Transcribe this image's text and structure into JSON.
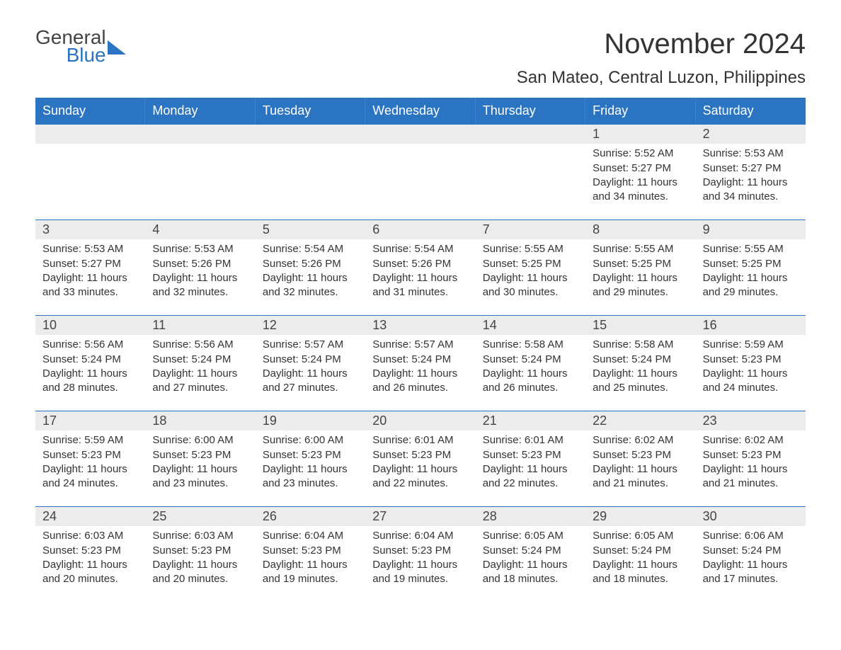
{
  "brand": {
    "word1": "General",
    "word2": "Blue",
    "icon_color": "#2a74c1"
  },
  "title": "November 2024",
  "subtitle": "San Mateo, Central Luzon, Philippines",
  "colors": {
    "header_bg": "#2a74c1",
    "daynum_bg": "#ececec",
    "text": "#333333",
    "page_bg": "#ffffff"
  },
  "fonts": {
    "title_size": 40,
    "subtitle_size": 24,
    "weekday_size": 18,
    "body_size": 15
  },
  "weekdays": [
    "Sunday",
    "Monday",
    "Tuesday",
    "Wednesday",
    "Thursday",
    "Friday",
    "Saturday"
  ],
  "weeks": [
    [
      {
        "n": "",
        "sr": "",
        "ss": "",
        "dl": ""
      },
      {
        "n": "",
        "sr": "",
        "ss": "",
        "dl": ""
      },
      {
        "n": "",
        "sr": "",
        "ss": "",
        "dl": ""
      },
      {
        "n": "",
        "sr": "",
        "ss": "",
        "dl": ""
      },
      {
        "n": "",
        "sr": "",
        "ss": "",
        "dl": ""
      },
      {
        "n": "1",
        "sr": "Sunrise: 5:52 AM",
        "ss": "Sunset: 5:27 PM",
        "dl": "Daylight: 11 hours and 34 minutes."
      },
      {
        "n": "2",
        "sr": "Sunrise: 5:53 AM",
        "ss": "Sunset: 5:27 PM",
        "dl": "Daylight: 11 hours and 34 minutes."
      }
    ],
    [
      {
        "n": "3",
        "sr": "Sunrise: 5:53 AM",
        "ss": "Sunset: 5:27 PM",
        "dl": "Daylight: 11 hours and 33 minutes."
      },
      {
        "n": "4",
        "sr": "Sunrise: 5:53 AM",
        "ss": "Sunset: 5:26 PM",
        "dl": "Daylight: 11 hours and 32 minutes."
      },
      {
        "n": "5",
        "sr": "Sunrise: 5:54 AM",
        "ss": "Sunset: 5:26 PM",
        "dl": "Daylight: 11 hours and 32 minutes."
      },
      {
        "n": "6",
        "sr": "Sunrise: 5:54 AM",
        "ss": "Sunset: 5:26 PM",
        "dl": "Daylight: 11 hours and 31 minutes."
      },
      {
        "n": "7",
        "sr": "Sunrise: 5:55 AM",
        "ss": "Sunset: 5:25 PM",
        "dl": "Daylight: 11 hours and 30 minutes."
      },
      {
        "n": "8",
        "sr": "Sunrise: 5:55 AM",
        "ss": "Sunset: 5:25 PM",
        "dl": "Daylight: 11 hours and 29 minutes."
      },
      {
        "n": "9",
        "sr": "Sunrise: 5:55 AM",
        "ss": "Sunset: 5:25 PM",
        "dl": "Daylight: 11 hours and 29 minutes."
      }
    ],
    [
      {
        "n": "10",
        "sr": "Sunrise: 5:56 AM",
        "ss": "Sunset: 5:24 PM",
        "dl": "Daylight: 11 hours and 28 minutes."
      },
      {
        "n": "11",
        "sr": "Sunrise: 5:56 AM",
        "ss": "Sunset: 5:24 PM",
        "dl": "Daylight: 11 hours and 27 minutes."
      },
      {
        "n": "12",
        "sr": "Sunrise: 5:57 AM",
        "ss": "Sunset: 5:24 PM",
        "dl": "Daylight: 11 hours and 27 minutes."
      },
      {
        "n": "13",
        "sr": "Sunrise: 5:57 AM",
        "ss": "Sunset: 5:24 PM",
        "dl": "Daylight: 11 hours and 26 minutes."
      },
      {
        "n": "14",
        "sr": "Sunrise: 5:58 AM",
        "ss": "Sunset: 5:24 PM",
        "dl": "Daylight: 11 hours and 26 minutes."
      },
      {
        "n": "15",
        "sr": "Sunrise: 5:58 AM",
        "ss": "Sunset: 5:24 PM",
        "dl": "Daylight: 11 hours and 25 minutes."
      },
      {
        "n": "16",
        "sr": "Sunrise: 5:59 AM",
        "ss": "Sunset: 5:23 PM",
        "dl": "Daylight: 11 hours and 24 minutes."
      }
    ],
    [
      {
        "n": "17",
        "sr": "Sunrise: 5:59 AM",
        "ss": "Sunset: 5:23 PM",
        "dl": "Daylight: 11 hours and 24 minutes."
      },
      {
        "n": "18",
        "sr": "Sunrise: 6:00 AM",
        "ss": "Sunset: 5:23 PM",
        "dl": "Daylight: 11 hours and 23 minutes."
      },
      {
        "n": "19",
        "sr": "Sunrise: 6:00 AM",
        "ss": "Sunset: 5:23 PM",
        "dl": "Daylight: 11 hours and 23 minutes."
      },
      {
        "n": "20",
        "sr": "Sunrise: 6:01 AM",
        "ss": "Sunset: 5:23 PM",
        "dl": "Daylight: 11 hours and 22 minutes."
      },
      {
        "n": "21",
        "sr": "Sunrise: 6:01 AM",
        "ss": "Sunset: 5:23 PM",
        "dl": "Daylight: 11 hours and 22 minutes."
      },
      {
        "n": "22",
        "sr": "Sunrise: 6:02 AM",
        "ss": "Sunset: 5:23 PM",
        "dl": "Daylight: 11 hours and 21 minutes."
      },
      {
        "n": "23",
        "sr": "Sunrise: 6:02 AM",
        "ss": "Sunset: 5:23 PM",
        "dl": "Daylight: 11 hours and 21 minutes."
      }
    ],
    [
      {
        "n": "24",
        "sr": "Sunrise: 6:03 AM",
        "ss": "Sunset: 5:23 PM",
        "dl": "Daylight: 11 hours and 20 minutes."
      },
      {
        "n": "25",
        "sr": "Sunrise: 6:03 AM",
        "ss": "Sunset: 5:23 PM",
        "dl": "Daylight: 11 hours and 20 minutes."
      },
      {
        "n": "26",
        "sr": "Sunrise: 6:04 AM",
        "ss": "Sunset: 5:23 PM",
        "dl": "Daylight: 11 hours and 19 minutes."
      },
      {
        "n": "27",
        "sr": "Sunrise: 6:04 AM",
        "ss": "Sunset: 5:23 PM",
        "dl": "Daylight: 11 hours and 19 minutes."
      },
      {
        "n": "28",
        "sr": "Sunrise: 6:05 AM",
        "ss": "Sunset: 5:24 PM",
        "dl": "Daylight: 11 hours and 18 minutes."
      },
      {
        "n": "29",
        "sr": "Sunrise: 6:05 AM",
        "ss": "Sunset: 5:24 PM",
        "dl": "Daylight: 11 hours and 18 minutes."
      },
      {
        "n": "30",
        "sr": "Sunrise: 6:06 AM",
        "ss": "Sunset: 5:24 PM",
        "dl": "Daylight: 11 hours and 17 minutes."
      }
    ]
  ]
}
